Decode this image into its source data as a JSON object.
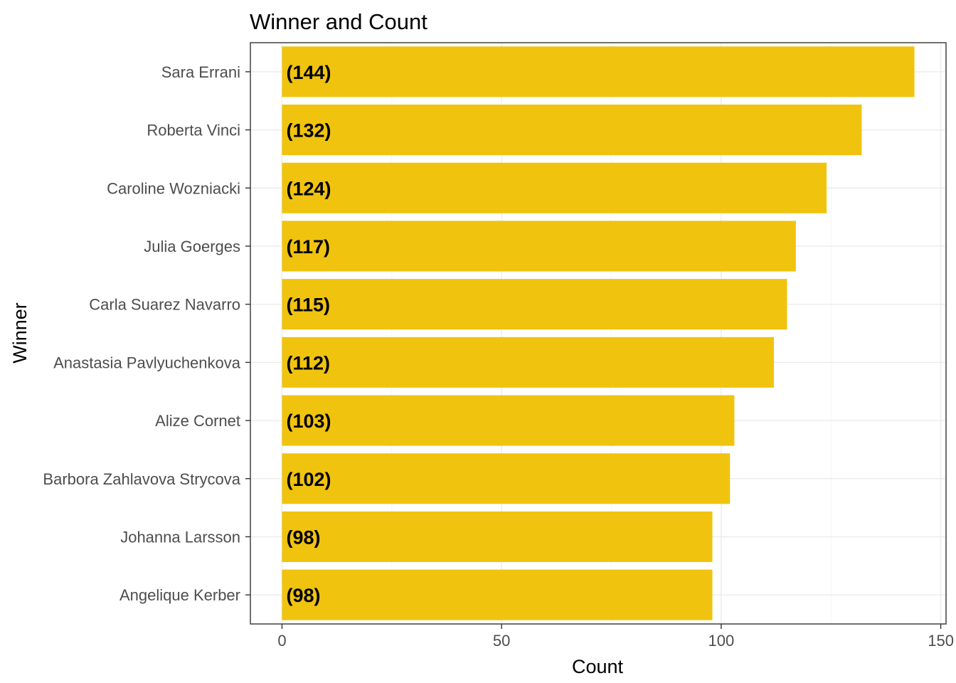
{
  "chart_data": {
    "type": "bar",
    "orientation": "horizontal",
    "title": "Winner and Count",
    "xlabel": "Count",
    "ylabel": "Winner",
    "categories": [
      "Sara Errani",
      "Roberta Vinci",
      "Caroline Wozniacki",
      "Julia Goerges",
      "Carla Suarez Navarro",
      "Anastasia Pavlyuchenkova",
      "Alize Cornet",
      "Barbora Zahlavova Strycova",
      "Johanna Larsson",
      "Angelique Kerber"
    ],
    "values": [
      144,
      132,
      124,
      117,
      115,
      112,
      103,
      102,
      98,
      98
    ],
    "data_labels": [
      "(144)",
      "(132)",
      "(124)",
      "(117)",
      "(115)",
      "(112)",
      "(103)",
      "(102)",
      "(98)",
      "(98)"
    ],
    "xticks": [
      0,
      50,
      100,
      150
    ],
    "xtick_labels": [
      "0",
      "50",
      "100",
      "150"
    ],
    "xlim": [
      -7.2,
      151.2
    ],
    "grid": true,
    "legend": "none",
    "bar_color": "#f0c30f"
  }
}
